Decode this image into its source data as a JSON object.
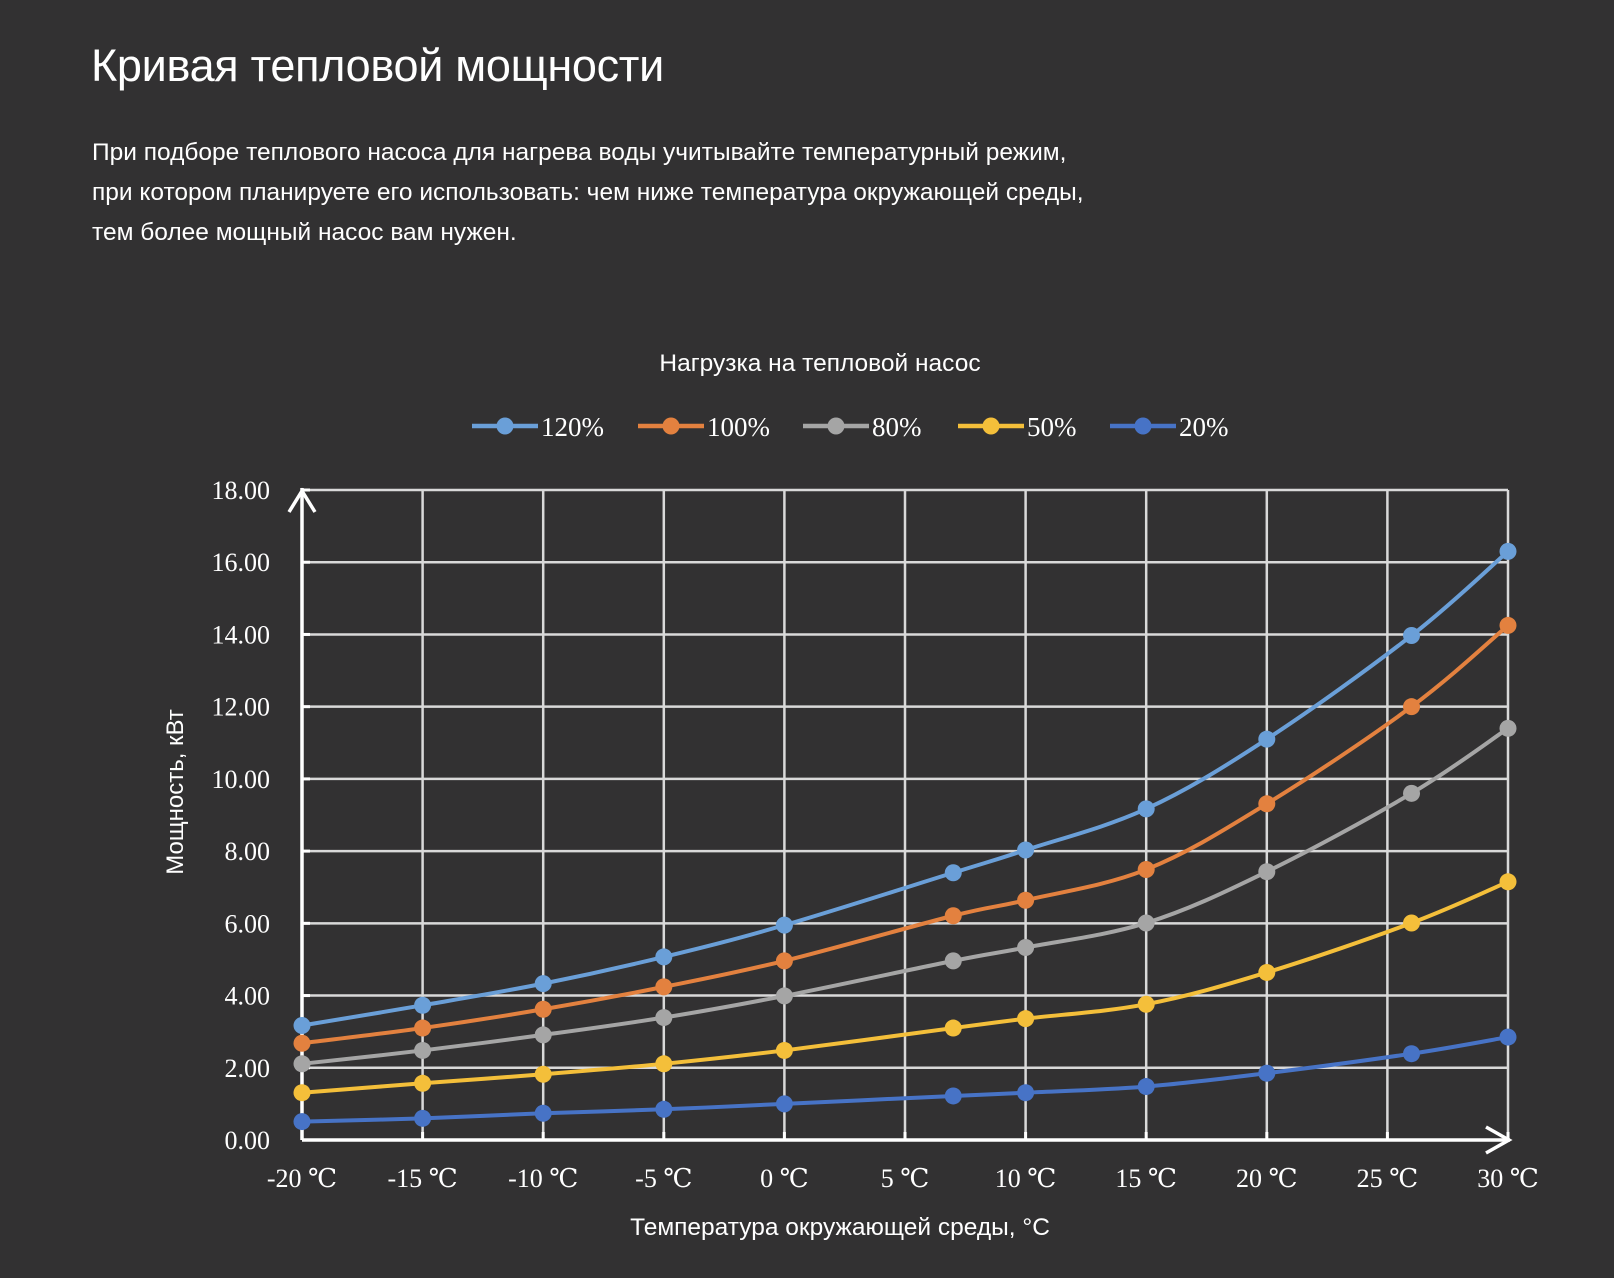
{
  "page": {
    "title": "Кривая тепловой мощности",
    "intro_lines": [
      "При подборе теплового насоса для нагрева воды учитывайте температурный режим,",
      "при котором планируете его использовать: чем ниже температура окружающей среды,",
      "тем более мощный насос вам нужен."
    ]
  },
  "chart_data": {
    "type": "line",
    "title": "Нагрузка на тепловой насос",
    "xlabel": "Температура окружающей среды, °C",
    "ylabel": "Мощность, кВт",
    "xlim": [
      -20,
      30
    ],
    "ylim": [
      0,
      18
    ],
    "x_ticks": [
      -20,
      -15,
      -10,
      -5,
      0,
      5,
      10,
      15,
      20,
      25,
      30
    ],
    "x_tick_labels": [
      "-20 ℃",
      "-15 ℃",
      "-10 ℃",
      "-5 ℃",
      "0 ℃",
      "5 ℃",
      "10 ℃",
      "15 ℃",
      "20 ℃",
      "25 ℃",
      "30 ℃"
    ],
    "y_ticks": [
      0,
      2,
      4,
      6,
      8,
      10,
      12,
      14,
      16,
      18
    ],
    "y_tick_labels": [
      "0.00",
      "2.00",
      "4.00",
      "6.00",
      "8.00",
      "10.00",
      "12.00",
      "14.00",
      "16.00",
      "18.00"
    ],
    "grid": true,
    "legend_position": "top-center",
    "x": [
      -20,
      -15,
      -10,
      -5,
      0,
      7,
      10,
      15,
      20,
      26,
      30
    ],
    "series": [
      {
        "name": "120%",
        "color": "#6a9fd8",
        "values": [
          3.17,
          3.73,
          4.33,
          5.07,
          5.95,
          7.4,
          8.03,
          9.17,
          11.1,
          13.97,
          16.3
        ]
      },
      {
        "name": "100%",
        "color": "#e3813f",
        "values": [
          2.68,
          3.1,
          3.62,
          4.24,
          4.96,
          6.21,
          6.64,
          7.49,
          9.31,
          12.0,
          14.25
        ]
      },
      {
        "name": "80%",
        "color": "#a5a5a5",
        "values": [
          2.11,
          2.48,
          2.91,
          3.39,
          3.99,
          4.96,
          5.33,
          6.01,
          7.43,
          9.6,
          11.4
        ]
      },
      {
        "name": "50%",
        "color": "#f4bf3a",
        "values": [
          1.31,
          1.57,
          1.82,
          2.11,
          2.48,
          3.1,
          3.36,
          3.76,
          4.64,
          6.01,
          7.15
        ]
      },
      {
        "name": "20%",
        "color": "#4773c6",
        "values": [
          0.51,
          0.6,
          0.74,
          0.85,
          1.0,
          1.22,
          1.31,
          1.48,
          1.85,
          2.39,
          2.85
        ]
      }
    ]
  }
}
